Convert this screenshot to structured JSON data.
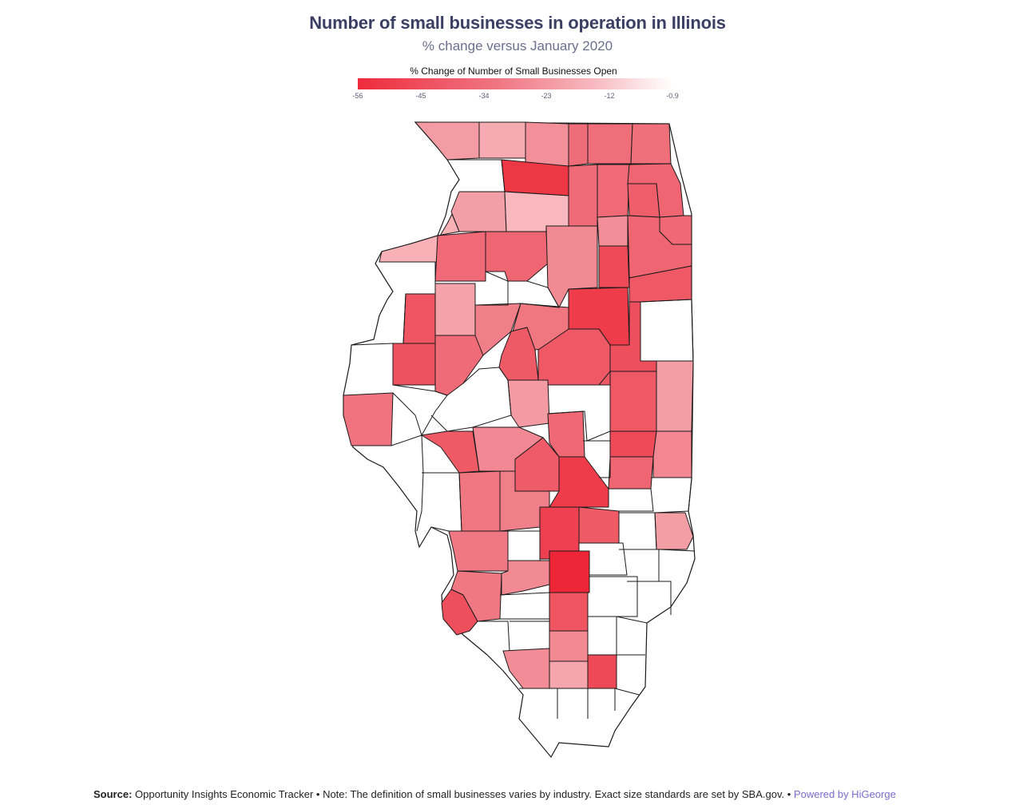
{
  "header": {
    "title": "Number of small businesses in operation in Illinois",
    "subtitle": "% change versus January 2020"
  },
  "legend": {
    "title": "% Change of Number of Small Businesses Open",
    "ticks": [
      "-56",
      "-45",
      "-34",
      "-23",
      "-12",
      "-0.9"
    ],
    "min_value": -56,
    "max_value": -0.9,
    "color_low": "#ee2b3c",
    "color_high": "#ffffff"
  },
  "footer": {
    "source_label": "Source:",
    "source_text": "Opportunity Insights Economic Tracker • Note: The definition of small businesses varies by industry. Exact size standards are set by SBA.gov. •",
    "powered_by": "Powered by HiGeorge"
  },
  "colors": {
    "no_data": "#ffffff",
    "border": "#1a1a1a"
  },
  "chart_data": {
    "type": "choropleth",
    "region": "Illinois",
    "unit": "% change",
    "counties_with_data_shown": 59
  }
}
